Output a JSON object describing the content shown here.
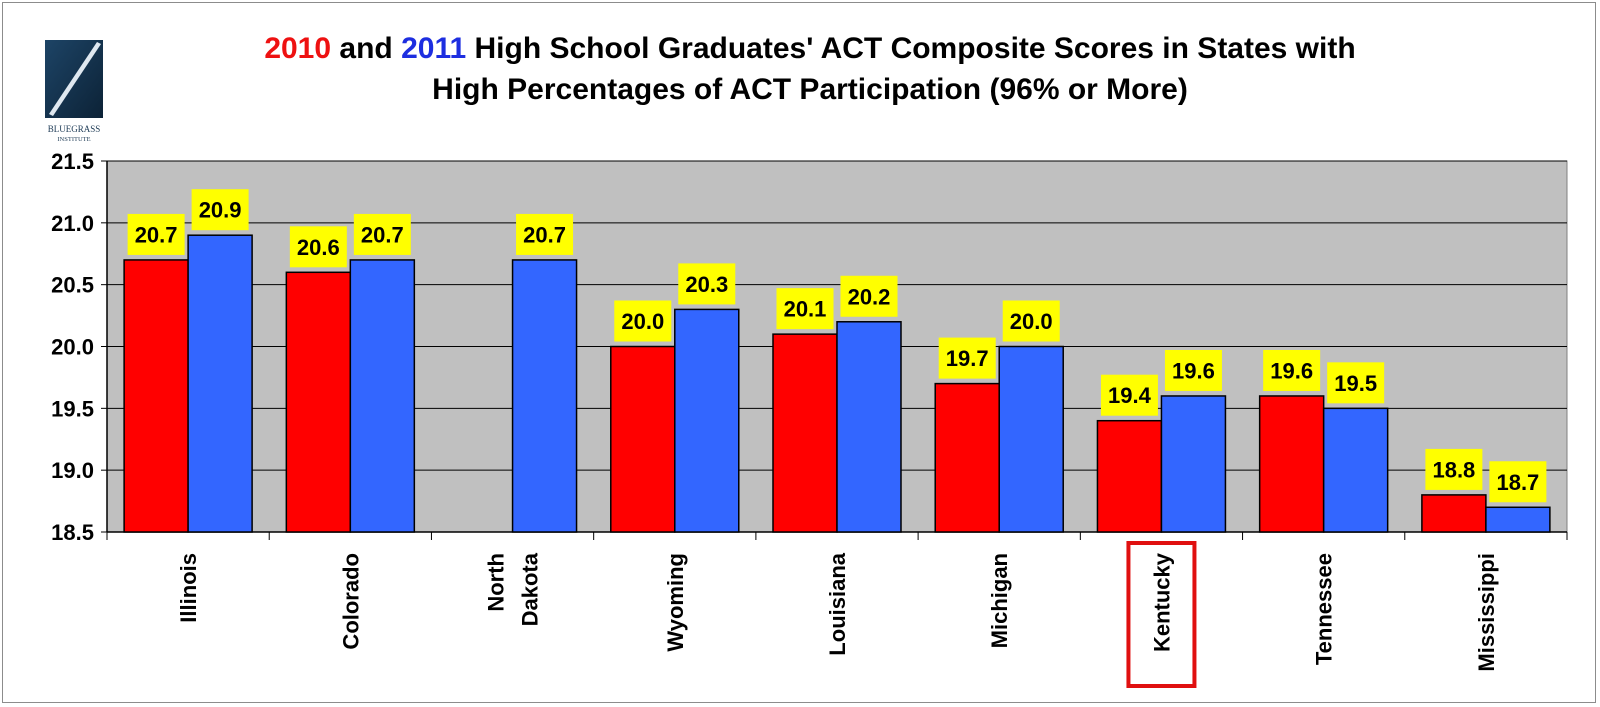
{
  "title": {
    "year1": "2010",
    "and_word": " and ",
    "year2": "2011",
    "line1_rest": " High School Graduates' ACT Composite Scores in States with",
    "line2": "High Percentages of ACT Participation (96% or More)"
  },
  "logo": {
    "name_line1": "BLUEGRASS",
    "name_line2": "INSTITUTE"
  },
  "colors": {
    "series_2010": "#ff0000",
    "series_2011": "#3366ff",
    "plot_background": "#c0c0c0",
    "label_background": "#ffff00",
    "highlight_box": "#e01010",
    "title_2010": "#ee1111",
    "title_2011": "#1d2ee0"
  },
  "chart_data": {
    "type": "bar",
    "title": "2010 and 2011 High School Graduates' ACT Composite Scores in States with High Percentages of ACT Participation (96% or More)",
    "categories": [
      [
        "Illinois"
      ],
      [
        "Colorado"
      ],
      [
        "North",
        "Dakota"
      ],
      [
        "Wyoming"
      ],
      [
        "Louisiana"
      ],
      [
        "Michigan"
      ],
      [
        "Kentucky"
      ],
      [
        "Tennessee"
      ],
      [
        "Mississippi"
      ]
    ],
    "series": [
      {
        "name": "2010",
        "values": [
          20.7,
          20.6,
          null,
          20.0,
          20.1,
          19.7,
          19.4,
          19.6,
          18.8
        ]
      },
      {
        "name": "2011",
        "values": [
          20.9,
          20.7,
          20.7,
          20.3,
          20.2,
          20.0,
          19.6,
          19.5,
          18.7
        ]
      }
    ],
    "ylim": [
      18.5,
      21.5
    ],
    "yticks": [
      "18.5",
      "19.0",
      "19.5",
      "20.0",
      "20.5",
      "21.0",
      "21.5"
    ],
    "xlabel": "",
    "ylabel": "",
    "grid": true,
    "highlighted_category": "Kentucky"
  }
}
